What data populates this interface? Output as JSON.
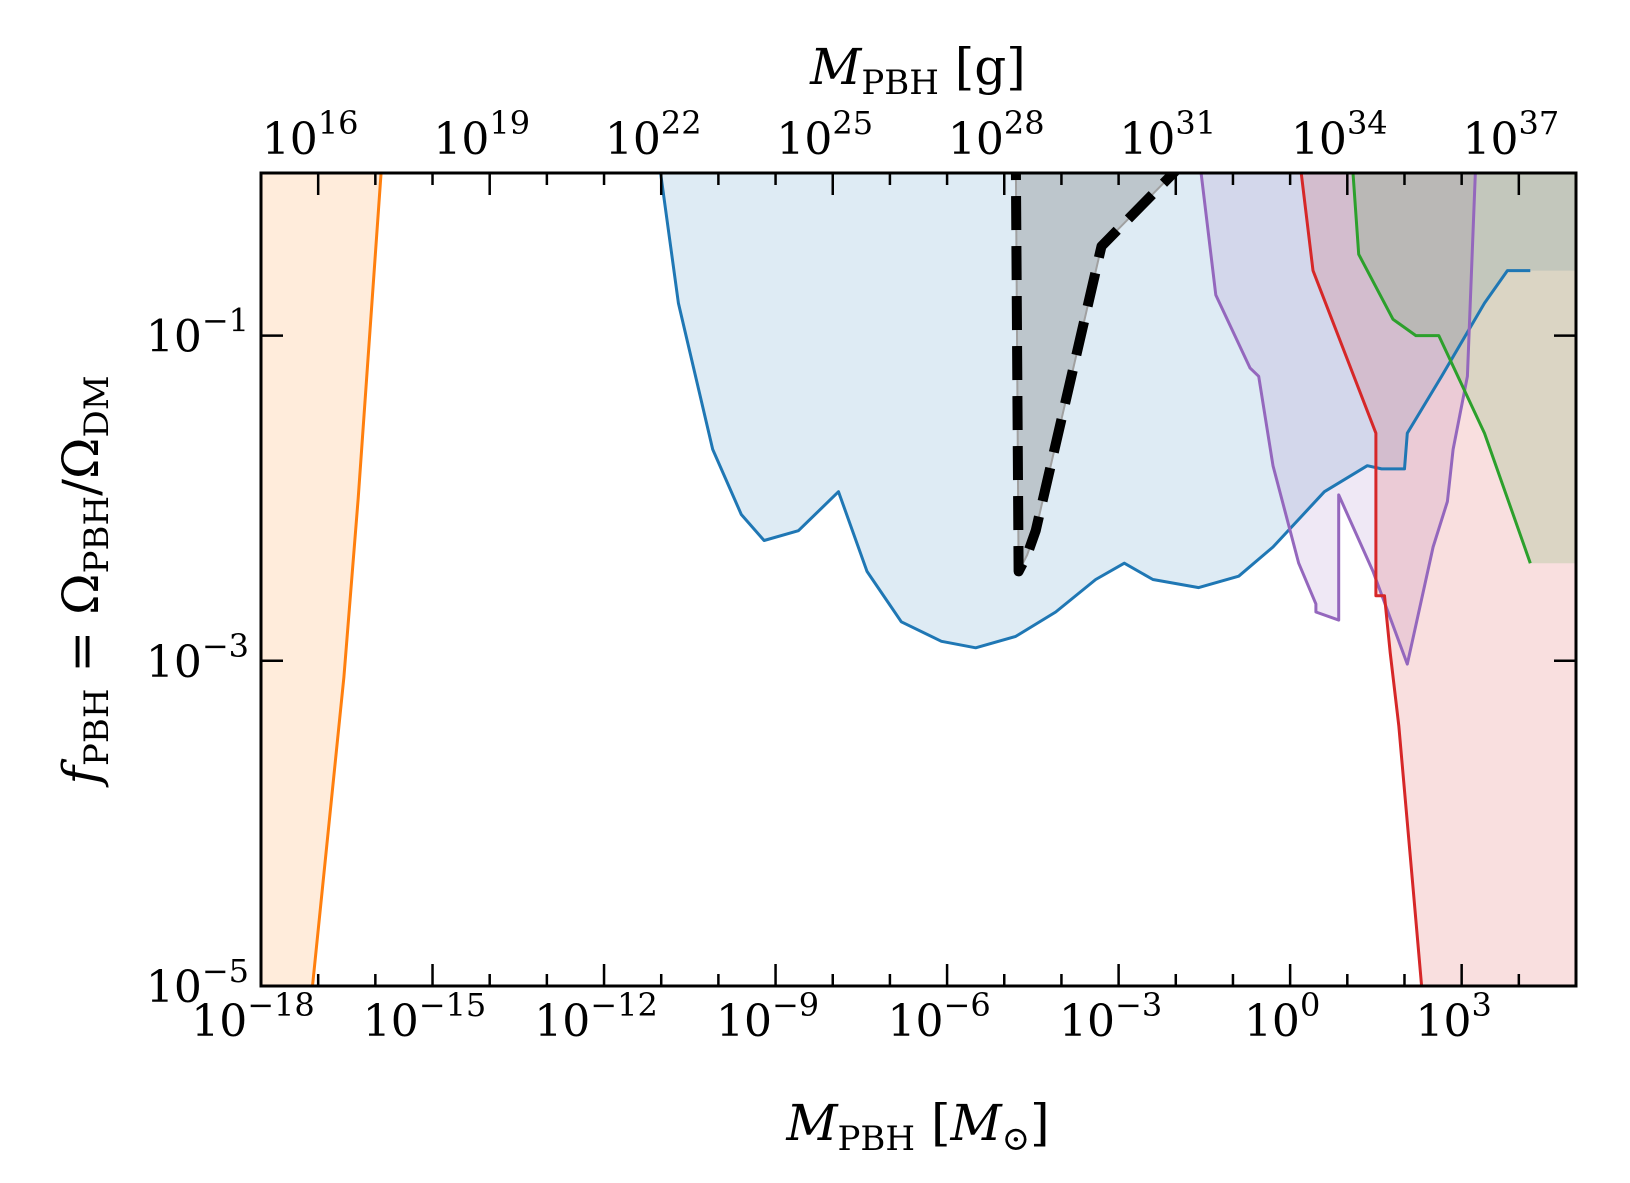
{
  "chart_data": {
    "type": "area",
    "xlabel": "M_PBH [M_⊙]",
    "x2label": "M_PBH [g]",
    "ylabel": "f_PBH = Ω_PBH/Ω_DM",
    "xscale": "log",
    "yscale": "log",
    "xlim": [
      1e-18,
      100000.0
    ],
    "x2lim": [
      1000000000000000.0,
      1e+38
    ],
    "ylim": [
      1e-05,
      1
    ],
    "x_ticks": [
      {
        "exp": -18,
        "base": "10",
        "sup": "−18"
      },
      {
        "exp": -15,
        "base": "10",
        "sup": "−15"
      },
      {
        "exp": -12,
        "base": "10",
        "sup": "−12"
      },
      {
        "exp": -9,
        "base": "10",
        "sup": "−9"
      },
      {
        "exp": -6,
        "base": "10",
        "sup": "−6"
      },
      {
        "exp": -3,
        "base": "10",
        "sup": "−3"
      },
      {
        "exp": 0,
        "base": "10",
        "sup": "0"
      },
      {
        "exp": 3,
        "base": "10",
        "sup": "3"
      }
    ],
    "x2_ticks": [
      {
        "exp": 16,
        "base": "10",
        "sup": "16"
      },
      {
        "exp": 19,
        "base": "10",
        "sup": "19"
      },
      {
        "exp": 22,
        "base": "10",
        "sup": "22"
      },
      {
        "exp": 25,
        "base": "10",
        "sup": "25"
      },
      {
        "exp": 28,
        "base": "10",
        "sup": "28"
      },
      {
        "exp": 31,
        "base": "10",
        "sup": "31"
      },
      {
        "exp": 34,
        "base": "10",
        "sup": "34"
      },
      {
        "exp": 37,
        "base": "10",
        "sup": "37"
      }
    ],
    "y_ticks": [
      {
        "exp": -1,
        "base": "10",
        "sup": "−1"
      },
      {
        "exp": -3,
        "base": "10",
        "sup": "−3"
      },
      {
        "exp": -5,
        "base": "10",
        "sup": "−5"
      }
    ],
    "series": [
      {
        "color": "#ff7f0e",
        "fill": "#ff7f0e",
        "fill_side": "left",
        "points": [
          [
            -17.1,
            -5
          ],
          [
            -16.55,
            -3.1
          ],
          [
            -16.3,
            -2.0
          ],
          [
            -15.7,
            1
          ]
        ]
      },
      {
        "color": "#1f77b4",
        "fill": "#1f77b4",
        "fill_side": "above",
        "points": [
          [
            -11.4,
            1
          ],
          [
            -10.7,
            -0.8
          ],
          [
            -10.1,
            -1.7
          ],
          [
            -9.6,
            -2.1
          ],
          [
            -9.2,
            -2.26
          ],
          [
            -8.6,
            -2.2
          ],
          [
            -7.9,
            -1.96
          ],
          [
            -7.4,
            -2.45
          ],
          [
            -6.8,
            -2.76
          ],
          [
            -6.1,
            -2.88
          ],
          [
            -5.5,
            -2.92
          ],
          [
            -4.8,
            -2.85
          ],
          [
            -4.1,
            -2.7
          ],
          [
            -3.4,
            -2.5
          ],
          [
            -2.9,
            -2.4
          ],
          [
            -2.4,
            -2.5
          ],
          [
            -1.6,
            -2.55
          ],
          [
            -0.9,
            -2.48
          ],
          [
            -0.3,
            -2.3
          ],
          [
            0.6,
            -1.96
          ],
          [
            1.35,
            -1.8
          ],
          [
            1.6,
            -1.82
          ],
          [
            2.0,
            -1.82
          ],
          [
            2.05,
            -1.6
          ],
          [
            2.65,
            -1.25
          ],
          [
            3.4,
            -0.8
          ],
          [
            3.8,
            -0.6
          ],
          [
            4.2,
            -0.6
          ]
        ]
      },
      {
        "color": "#9467bd",
        "fill": "#9467bd",
        "fill_side": "above",
        "points": [
          [
            -1.9,
            1
          ],
          [
            -1.3,
            -0.75
          ],
          [
            -0.7,
            -1.2
          ],
          [
            -0.55,
            -1.25
          ],
          [
            -0.3,
            -1.8
          ],
          [
            0.15,
            -2.4
          ],
          [
            0.45,
            -2.65
          ],
          [
            0.45,
            -2.7
          ],
          [
            0.85,
            -2.75
          ],
          [
            0.85,
            -1.98
          ],
          [
            1.45,
            -2.45
          ],
          [
            2.05,
            -3.02
          ],
          [
            2.5,
            -2.3
          ],
          [
            2.75,
            -2.02
          ],
          [
            2.85,
            -1.7
          ],
          [
            3.1,
            -1.25
          ],
          [
            3.35,
            1
          ]
        ]
      },
      {
        "color": "#d62728",
        "fill": "#d62728",
        "fill_side": "above",
        "points": [
          [
            -0.15,
            1
          ],
          [
            0.4,
            -0.6
          ],
          [
            1.5,
            -1.6
          ],
          [
            1.5,
            -2.6
          ],
          [
            1.65,
            -2.6
          ],
          [
            1.75,
            -2.95
          ],
          [
            1.9,
            -3.4
          ],
          [
            2.15,
            -4.4
          ],
          [
            2.3,
            -5
          ]
        ]
      },
      {
        "color": "#2ca02c",
        "fill": "#2ca02c",
        "fill_side": "above",
        "points": [
          [
            0.9,
            1
          ],
          [
            1.2,
            -0.5
          ],
          [
            1.8,
            -0.9
          ],
          [
            2.2,
            -1.0
          ],
          [
            2.6,
            -1.0
          ],
          [
            3.4,
            -1.6
          ],
          [
            4.2,
            -2.4
          ]
        ]
      }
    ],
    "grey_region": [
      [
        -6.85,
        0.7
      ],
      [
        -6.35,
        0.5
      ],
      [
        -5.3,
        0.3
      ],
      [
        -4.8,
        0.2
      ],
      [
        -4.75,
        -2.45
      ],
      [
        -4.6,
        -2.35
      ],
      [
        -4.45,
        -2.2
      ],
      [
        -3.3,
        -0.45
      ],
      [
        -1.2,
        0.3
      ],
      [
        1.6,
        0.3
      ],
      [
        2.05,
        0.2
      ],
      [
        2.05,
        1
      ]
    ],
    "dashed_boundary": [
      [
        -6.85,
        0.7
      ],
      [
        -6.35,
        0.5
      ],
      [
        -5.3,
        0.3
      ],
      [
        -4.8,
        0.2
      ],
      [
        -4.75,
        -2.45
      ],
      [
        -4.6,
        -2.35
      ],
      [
        -4.45,
        -2.2
      ],
      [
        -3.3,
        -0.45
      ],
      [
        -1.2,
        0.3
      ],
      [
        1.6,
        0.3
      ],
      [
        2.05,
        0.2
      ]
    ],
    "top_band": {
      "y_from": 0.2,
      "y_to": 1,
      "color": "#808080"
    }
  }
}
